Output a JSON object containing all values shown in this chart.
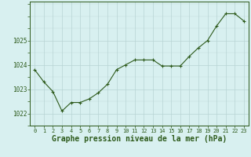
{
  "x": [
    0,
    1,
    2,
    3,
    4,
    5,
    6,
    7,
    8,
    9,
    10,
    11,
    12,
    13,
    14,
    15,
    16,
    17,
    18,
    19,
    20,
    21,
    22,
    23
  ],
  "y": [
    1023.8,
    1023.3,
    1022.9,
    1022.1,
    1022.45,
    1022.45,
    1022.6,
    1022.85,
    1023.2,
    1023.8,
    1024.0,
    1024.2,
    1024.2,
    1024.2,
    1023.95,
    1023.95,
    1023.95,
    1024.35,
    1024.7,
    1025.0,
    1025.6,
    1026.1,
    1026.1,
    1025.8
  ],
  "line_color": "#2d5a1b",
  "marker_color": "#2d5a1b",
  "bg_color": "#d8f0f0",
  "grid_color": "#b8d4d4",
  "xlabel": "Graphe pression niveau de la mer (hPa)",
  "xlabel_color": "#2d5a1b",
  "xlabel_fontsize": 7,
  "ylabel_ticks": [
    1022,
    1023,
    1024,
    1025
  ],
  "ylim": [
    1021.5,
    1026.6
  ],
  "xlim": [
    -0.5,
    23.5
  ],
  "xticks": [
    0,
    1,
    2,
    3,
    4,
    5,
    6,
    7,
    8,
    9,
    10,
    11,
    12,
    13,
    14,
    15,
    16,
    17,
    18,
    19,
    20,
    21,
    22,
    23
  ],
  "tick_color": "#2d5a1b",
  "tick_fontsize": 5,
  "border_color": "#2d5a1b",
  "fig_width": 3.2,
  "fig_height": 2.0,
  "dpi": 100
}
